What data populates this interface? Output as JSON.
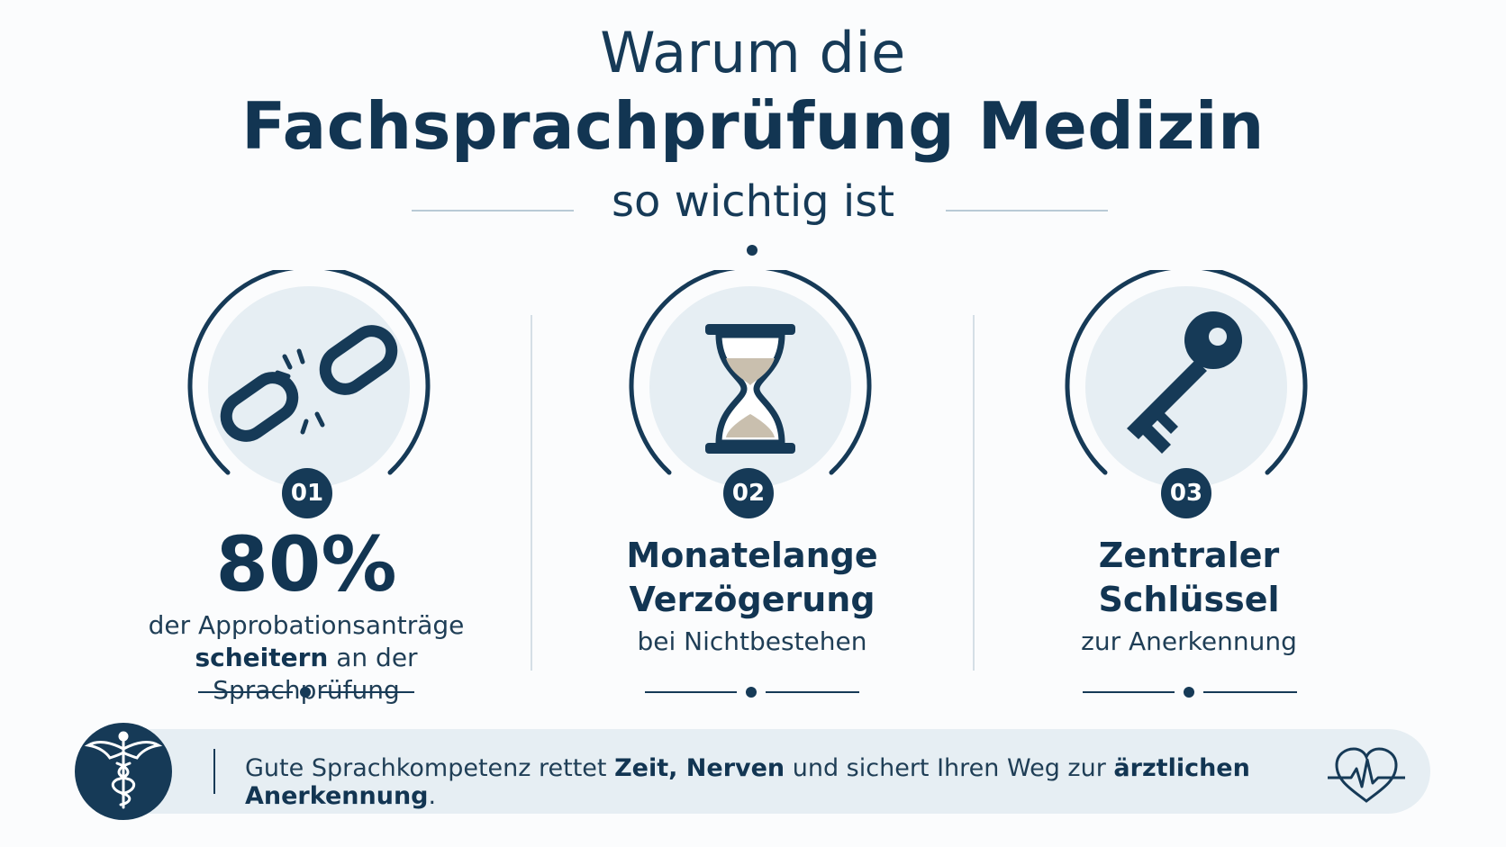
{
  "title": {
    "line1": "Warum die",
    "line2": "Fachsprachprüfung Medizin",
    "line3": "so wichtig ist"
  },
  "items": [
    {
      "number": "01",
      "headline": "80%",
      "text_line1": "der Approbationsanträge",
      "text_bold": "scheitern",
      "text_rest": " an der Sprachprüfung",
      "icon": "broken-chain-icon"
    },
    {
      "number": "02",
      "headline_line1": "Monatelange",
      "headline_line2": "Verzögerung",
      "text": "bei Nichtbestehen",
      "icon": "hourglass-icon"
    },
    {
      "number": "03",
      "headline_line1": "Zentraler",
      "headline_line2": "Schlüssel",
      "text": "zur Anerkennung",
      "icon": "key-icon"
    }
  ],
  "footer": {
    "part1": "Gute Sprachkompetenz rettet ",
    "bold1": "Zeit, Nerven",
    "part2": " und sichert Ihren Weg zur ",
    "bold2": "ärztlichen Anerkennung",
    "part3": ".",
    "left_icon": "caduceus-icon",
    "right_icon": "heart-pulse-icon"
  },
  "colors": {
    "navy": "#163a57",
    "circle_fill": "#e6eef3",
    "sand": "#c9bfae"
  }
}
